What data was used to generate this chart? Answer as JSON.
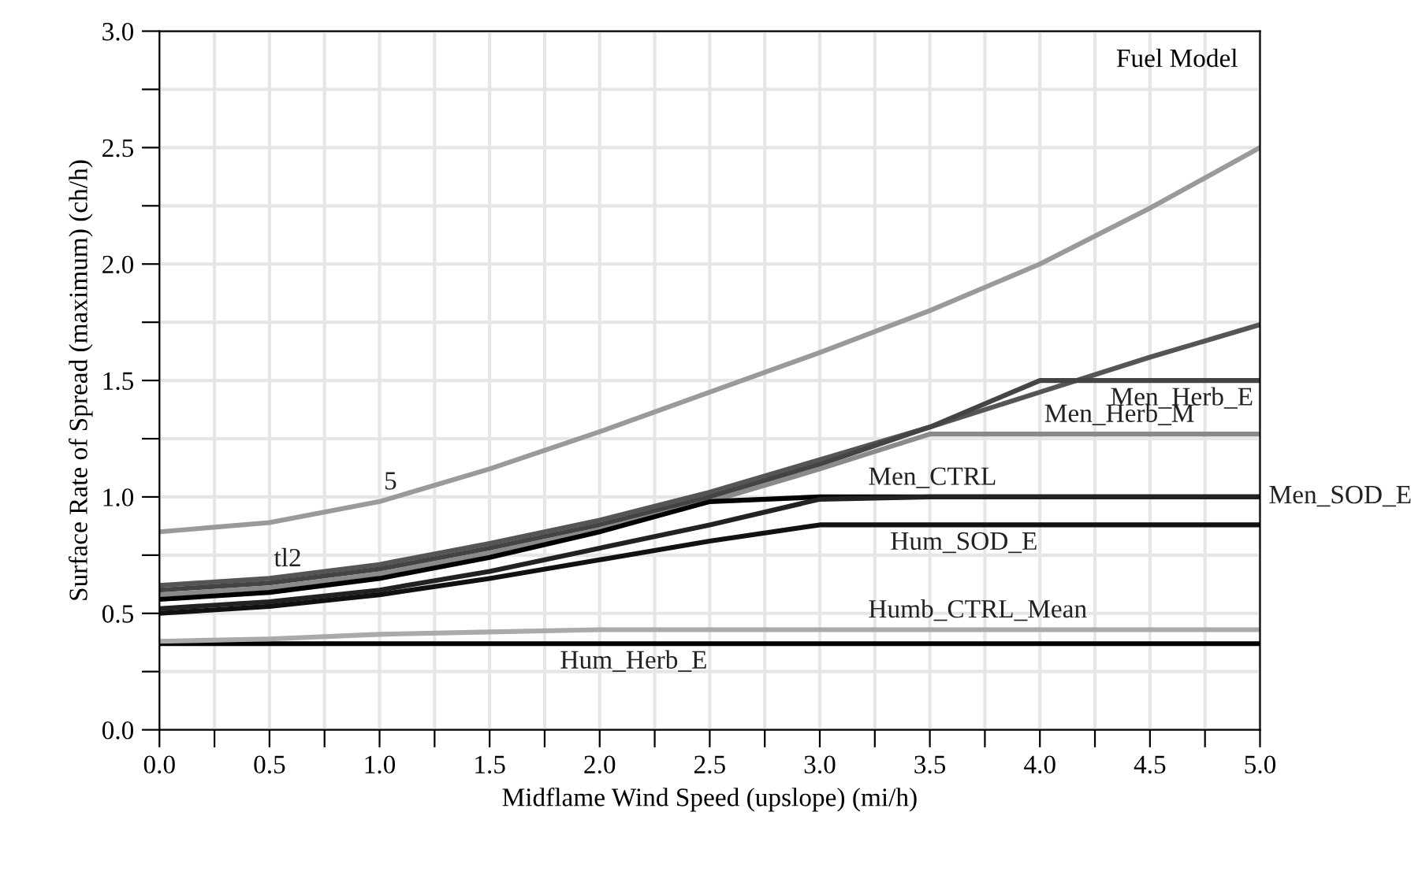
{
  "chart_data": {
    "type": "line",
    "xlabel": "Midflame Wind Speed (upslope) (mi/h)",
    "ylabel": "Surface Rate of Spread (maximum) (ch/h)",
    "legend_title": "Fuel Model",
    "x": [
      0,
      0.5,
      1,
      1.5,
      2,
      2.5,
      3,
      3.5,
      4,
      4.5,
      5
    ],
    "series": [
      {
        "color": "#9a9a9a",
        "values": [
          0.85,
          0.89,
          0.98,
          1.12,
          1.28,
          1.45,
          1.62,
          1.8,
          2.0,
          2.24,
          2.5
        ]
      },
      {
        "color": "#555555",
        "values": [
          0.62,
          0.65,
          0.71,
          0.8,
          0.9,
          1.02,
          1.16,
          1.3,
          1.45,
          1.6,
          1.74
        ]
      },
      {
        "color": "#444444",
        "values": [
          0.6,
          0.63,
          0.69,
          0.78,
          0.88,
          1.0,
          1.14,
          1.3,
          1.5,
          1.5,
          1.5
        ]
      },
      {
        "color": "#8a8a8a",
        "values": [
          0.58,
          0.61,
          0.67,
          0.76,
          0.86,
          0.98,
          1.12,
          1.27,
          1.27,
          1.27,
          1.27
        ]
      },
      {
        "color": "#000000",
        "values": [
          0.56,
          0.59,
          0.65,
          0.74,
          0.85,
          0.98,
          1.0,
          1.0,
          1.0,
          1.0,
          1.0
        ]
      },
      {
        "color": "#222222",
        "values": [
          0.52,
          0.55,
          0.6,
          0.68,
          0.78,
          0.88,
          0.99,
          1.0,
          1.0,
          1.0,
          1.0
        ]
      },
      {
        "color": "#111111",
        "values": [
          0.5,
          0.53,
          0.58,
          0.65,
          0.73,
          0.81,
          0.88,
          0.88,
          0.88,
          0.88,
          0.88
        ]
      },
      {
        "color": "#000000",
        "values": [
          0.37,
          0.37,
          0.37,
          0.37,
          0.37,
          0.37,
          0.37,
          0.37,
          0.37,
          0.37,
          0.37
        ]
      },
      {
        "color": "#aaaaaa",
        "values": [
          0.38,
          0.39,
          0.41,
          0.42,
          0.43,
          0.43,
          0.43,
          0.43,
          0.43,
          0.43,
          0.43
        ]
      }
    ],
    "annotations": [
      {
        "text": "5",
        "x": 1.0,
        "y": 0.98
      },
      {
        "text": "tl2",
        "x": 0.5,
        "y": 0.65
      },
      {
        "text": "Hum_SOD_E",
        "x": 3.3,
        "y": 0.88
      },
      {
        "text": "Hum_Herb_E",
        "x": 1.8,
        "y": 0.37
      },
      {
        "text": "Humb_CTRL_Mean",
        "x": 3.2,
        "y": 0.43
      },
      {
        "text": "Men_CTRL",
        "x": 3.2,
        "y": 1.0
      },
      {
        "text": "Men_SOD_E",
        "x": 5.0,
        "y": 1.0
      },
      {
        "text": "Men_Herb_E",
        "x": 4.3,
        "y": 1.5
      },
      {
        "text": "Men_Herb_M",
        "x": 4.0,
        "y": 1.27
      }
    ],
    "xlim": [
      0,
      5
    ],
    "ylim": [
      0,
      3
    ],
    "xticks": [
      {
        "value": 0,
        "label": "0.0"
      },
      {
        "value": 0.25,
        "label": null
      },
      0.5,
      {
        "value": 0.75,
        "label": null
      },
      {
        "value": 1,
        "label": "1.0"
      },
      {
        "value": 1.25,
        "label": null
      },
      1.5,
      {
        "value": 1.75,
        "label": null
      },
      {
        "value": 2,
        "label": "2.0"
      },
      {
        "value": 2.25,
        "label": null
      },
      2.5,
      {
        "value": 2.75,
        "label": null
      },
      {
        "value": 3,
        "label": "3.0"
      },
      {
        "value": 3.25,
        "label": null
      },
      3.5,
      {
        "value": 3.75,
        "label": null
      },
      {
        "value": 4,
        "label": "4.0"
      },
      {
        "value": 4.25,
        "label": null
      },
      4.5,
      {
        "value": 4.75,
        "label": null
      },
      {
        "value": 5,
        "label": "5.0"
      }
    ],
    "yticks": [
      {
        "value": 0,
        "label": "0.0"
      },
      {
        "value": 0.25,
        "label": null
      },
      0.5,
      {
        "value": 0.75,
        "label": null
      },
      {
        "value": 1,
        "label": "1.0"
      },
      {
        "value": 1.25,
        "label": null
      },
      1.5,
      {
        "value": 1.75,
        "label": null
      },
      {
        "value": 2,
        "label": "2.0"
      },
      {
        "value": 2.25,
        "label": null
      },
      2.5,
      {
        "value": 2.75,
        "label": null
      },
      {
        "value": 3,
        "label": "3.0"
      }
    ],
    "grid": true,
    "marker": "none",
    "line_style": "solid"
  }
}
